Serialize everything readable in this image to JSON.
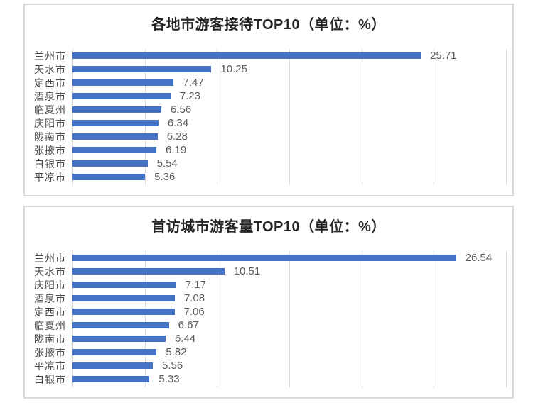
{
  "colors": {
    "bar_blue": "#4472c4",
    "gridline": "#d9d9d9",
    "panel_border": "#d9d9d9",
    "title_text": "#262626",
    "category_text": "#4a4a4a",
    "value_text": "#595959",
    "background": "#ffffff"
  },
  "chart_data": [
    {
      "type": "bar",
      "orientation": "horizontal",
      "title": "各地市游客接待TOP10（单位：%）",
      "unit": "%",
      "categories": [
        "兰州市",
        "天水市",
        "定西市",
        "酒泉市",
        "临夏州",
        "庆阳市",
        "陇南市",
        "张掖市",
        "白银市",
        "平凉市"
      ],
      "values": [
        25.71,
        10.25,
        7.47,
        7.23,
        6.56,
        6.34,
        6.28,
        6.19,
        5.54,
        5.36
      ],
      "value_labels_shown": true,
      "xlim": [
        0,
        32
      ],
      "gridlines": 7,
      "grid": true,
      "legend": false,
      "axis_tick_labels_shown": false,
      "bar_color": "#4472c4"
    },
    {
      "type": "bar",
      "orientation": "horizontal",
      "title": "首访城市游客量TOP10（单位：%）",
      "unit": "%",
      "categories": [
        "兰州市",
        "天水市",
        "庆阳市",
        "酒泉市",
        "定西市",
        "临夏州",
        "陇南市",
        "张掖市",
        "平凉市",
        "白银市"
      ],
      "values": [
        26.54,
        10.51,
        7.17,
        7.08,
        7.06,
        6.67,
        6.44,
        5.82,
        5.56,
        5.33
      ],
      "value_labels_shown": true,
      "xlim": [
        0,
        30
      ],
      "gridlines": 7,
      "grid": true,
      "legend": false,
      "axis_tick_labels_shown": false,
      "bar_color": "#4472c4"
    }
  ]
}
